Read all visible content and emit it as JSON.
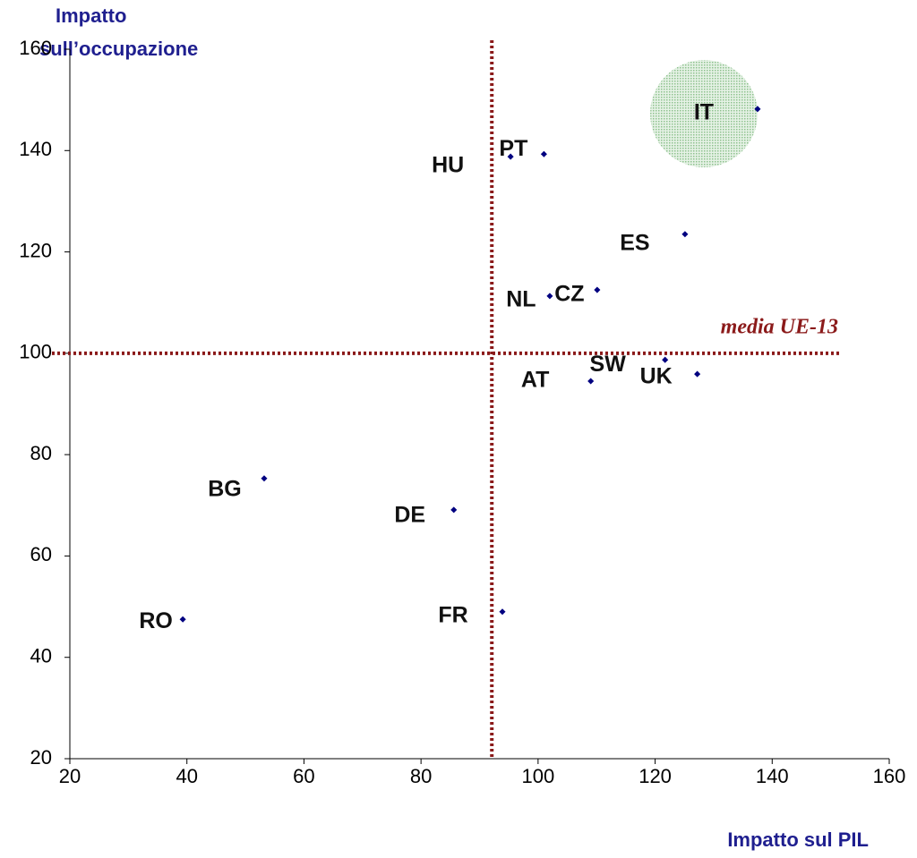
{
  "chart_data": {
    "type": "scatter",
    "x_label": "Impatto sul PIL",
    "y_label": [
      "Impatto",
      "sull’occupazione"
    ],
    "xlim": [
      20,
      160
    ],
    "xticks": [
      20,
      40,
      60,
      80,
      100,
      120,
      140,
      160
    ],
    "ylim": [
      20,
      160
    ],
    "yticks": [
      20,
      40,
      60,
      80,
      100,
      120,
      140,
      160
    ],
    "series": [
      {
        "color": "#000080",
        "labels": [
          "IT",
          "PT",
          "HU",
          "ES",
          "CZ",
          "NL",
          "SW",
          "UK",
          "AT",
          "BG",
          "DE",
          "FR",
          "RO"
        ],
        "x": [
          137.5,
          101,
          95.3,
          125.1,
          110.1,
          102,
          121.7,
          127.2,
          109,
          53.2,
          85.6,
          93.9,
          39.3
        ],
        "values": [
          148.2,
          139.3,
          138.8,
          123.5,
          112.5,
          111.3,
          98.7,
          95.9,
          94.5,
          75.3,
          69.1,
          49,
          47.5
        ]
      }
    ],
    "reference_lines": {
      "x": 92.1,
      "y": 100,
      "label": "media UE-13",
      "color": "#8b1a1a"
    }
  }
}
